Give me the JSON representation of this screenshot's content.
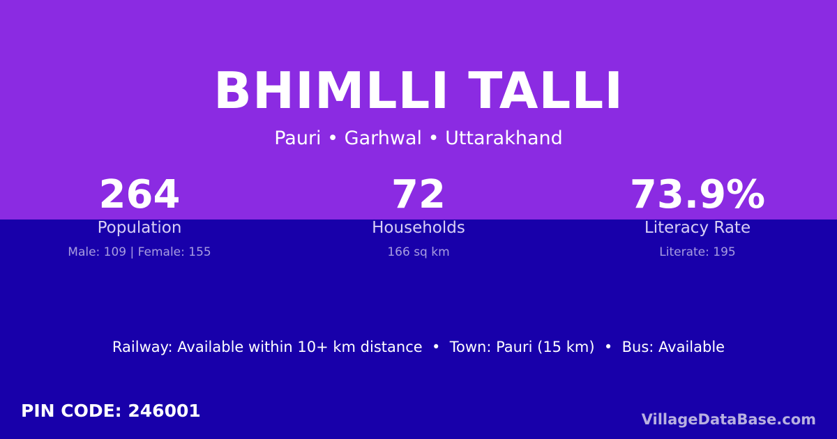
{
  "village": "BHIMLLI TALLI",
  "location": "Pauri • Garhwal • Uttarakhand",
  "stats": [
    {
      "value": "264",
      "label": "Population",
      "detail": "Male: 109 | Female: 155"
    },
    {
      "value": "72",
      "label": "Households",
      "detail": "166 sq km"
    },
    {
      "value": "73.9%",
      "label": "Literacy Rate",
      "detail": "Literate: 195"
    }
  ],
  "connectivity": "Railway: Available within 10+ km distance  •  Town: Pauri (15 km)  •  Bus: Available",
  "pin": "PIN CODE: 246001",
  "brand": "VillageDataBase.com",
  "colors": {
    "top": "#8b2be2",
    "bottom": "#1800aa"
  }
}
